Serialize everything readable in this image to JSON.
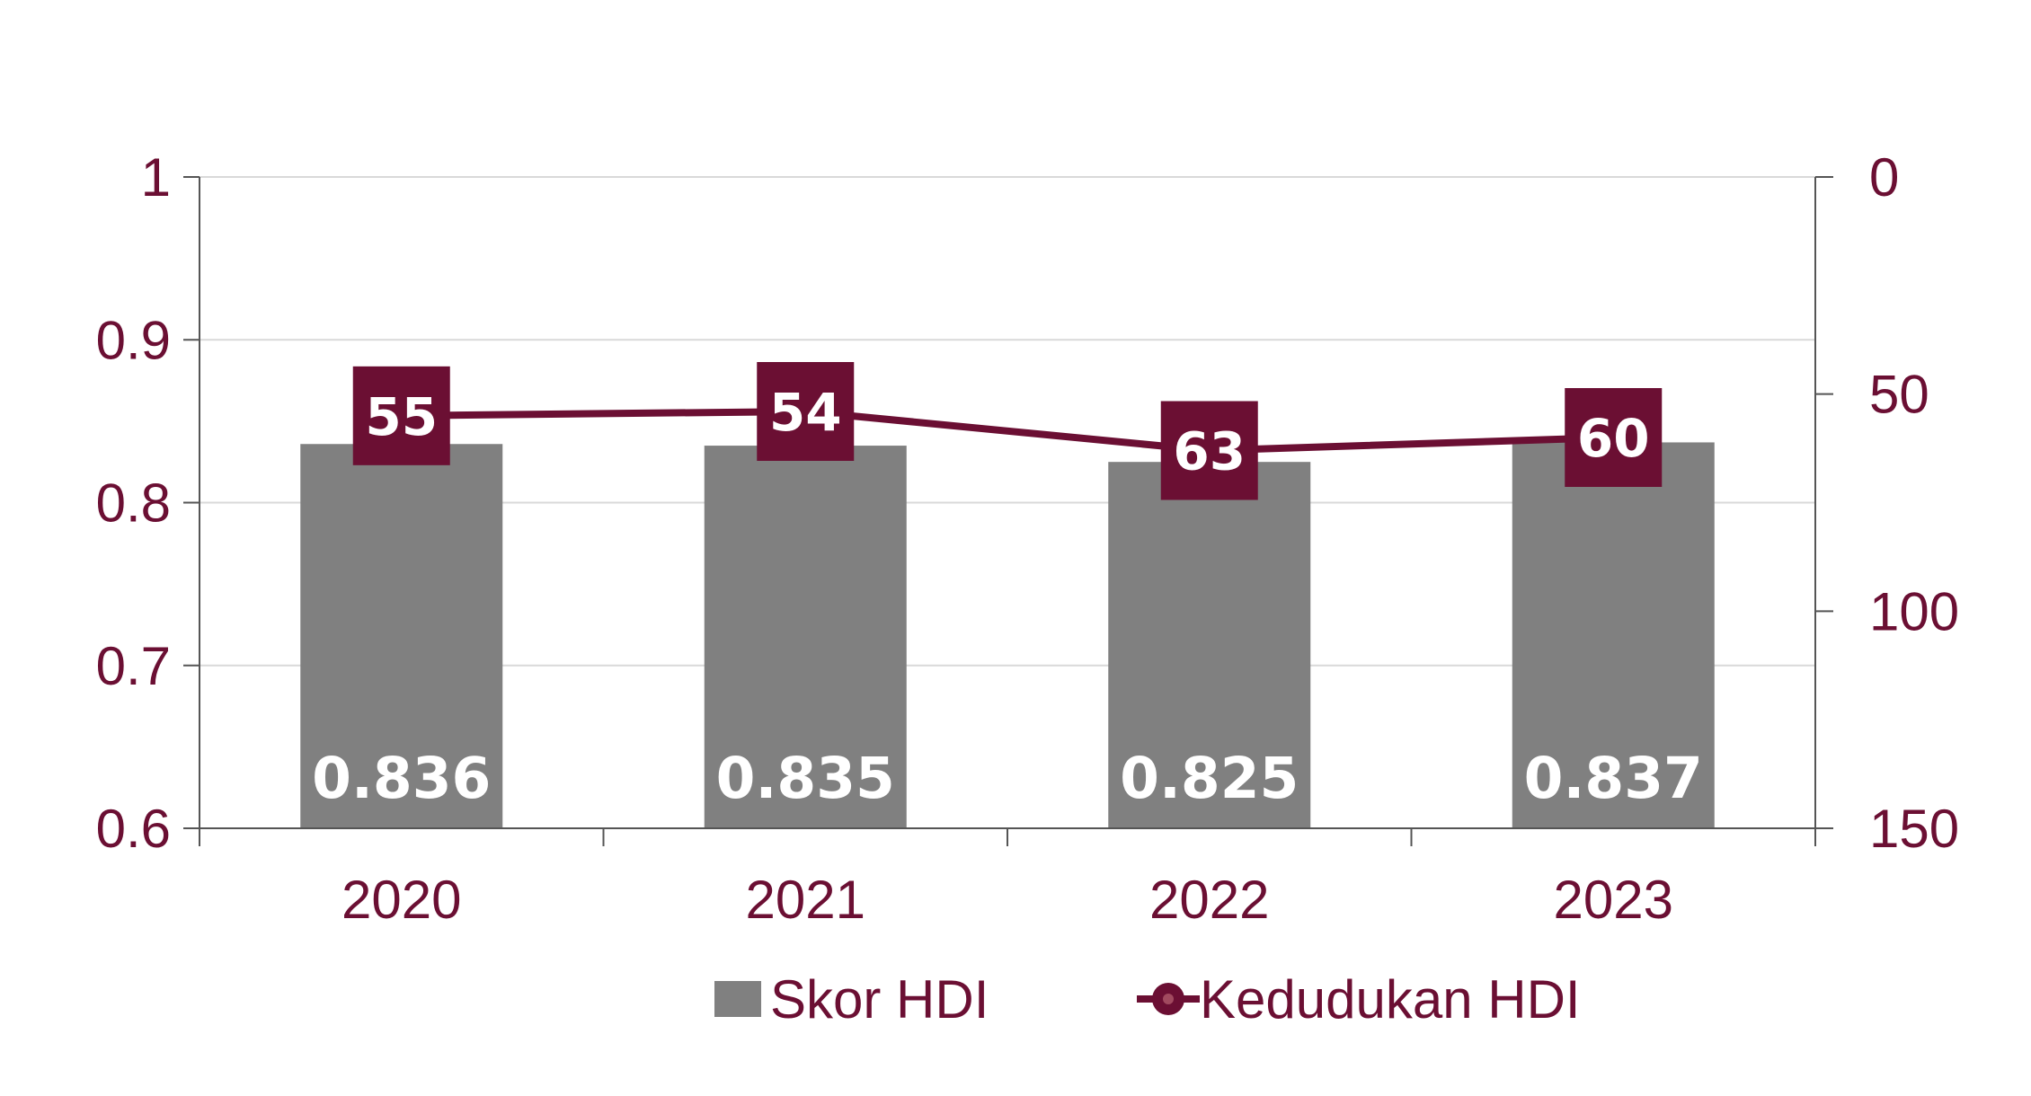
{
  "chart_data": {
    "type": "bar",
    "categories": [
      "2020",
      "2021",
      "2022",
      "2023"
    ],
    "series": [
      {
        "name": "Skor HDI",
        "type": "bar",
        "axis": "left",
        "values": [
          0.836,
          0.835,
          0.825,
          0.837
        ],
        "labels": [
          "0.836",
          "0.835",
          "0.825",
          "0.837"
        ]
      },
      {
        "name": "Kedudukan HDI",
        "type": "line",
        "axis": "right",
        "values": [
          55,
          54,
          63,
          60
        ],
        "labels": [
          "55",
          "54",
          "63",
          "60"
        ]
      }
    ],
    "y_left": {
      "ylim": [
        0.6,
        1
      ],
      "ticks": [
        "0.6",
        "0.7",
        "0.8",
        "0.9",
        "1"
      ]
    },
    "y_right": {
      "ylim": [
        0,
        150
      ],
      "reversed": true,
      "ticks": [
        "0",
        "50",
        "100",
        "150"
      ]
    },
    "legend": {
      "position": "bottom",
      "items": [
        "Skor HDI",
        "Kedudukan HDI"
      ]
    },
    "grid": true,
    "title": "",
    "xlabel": "",
    "ylabel": ""
  },
  "colors": {
    "bar": "#808080",
    "line": "#6b0f33",
    "text": "#6b0f33",
    "axis": "#555555",
    "grid": "#d9d9d9"
  }
}
